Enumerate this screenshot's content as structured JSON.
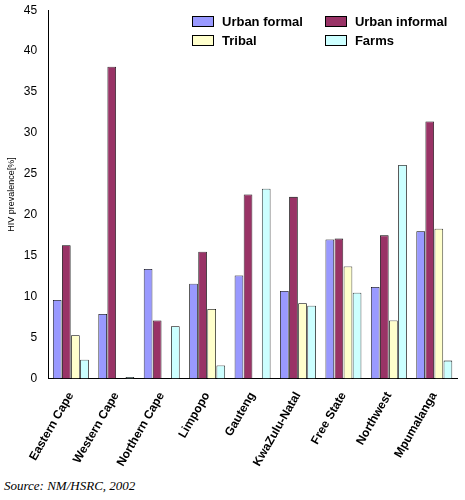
{
  "chart_data": {
    "type": "bar",
    "y_label": "HIV prevalence[%]",
    "source": "Source: NM/HSRC, 2002",
    "categories": [
      "Eastern Cape",
      "Western Cape",
      "Northern Cape",
      "Limpopo",
      "Gauteng",
      "KwaZulu-Natal",
      "Free State",
      "Northwest",
      "Mpumalanga"
    ],
    "series": [
      {
        "name": "Urban formal",
        "color": "#9999ff",
        "values": [
          9.6,
          7.9,
          13.4,
          11.6,
          12.6,
          10.7,
          17.0,
          11.2,
          18.0
        ]
      },
      {
        "name": "Urban informal",
        "color": "#993366",
        "values": [
          16.3,
          38.1,
          7.1,
          15.5,
          22.5,
          22.2,
          17.1,
          17.5,
          31.4
        ]
      },
      {
        "name": "Tribal",
        "color": "#ffffcc",
        "values": [
          5.3,
          null,
          null,
          8.5,
          null,
          9.2,
          13.7,
          7.1,
          18.3
        ]
      },
      {
        "name": "Farms",
        "color": "#ccffff",
        "values": [
          2.3,
          0.2,
          6.4,
          1.6,
          23.2,
          8.9,
          10.5,
          26.1,
          2.2
        ]
      }
    ],
    "ylim": [
      0,
      45
    ],
    "yticks": [
      0,
      5,
      10,
      15,
      20,
      25,
      30,
      35,
      40,
      45
    ],
    "grid": false,
    "legend": "upper right"
  }
}
